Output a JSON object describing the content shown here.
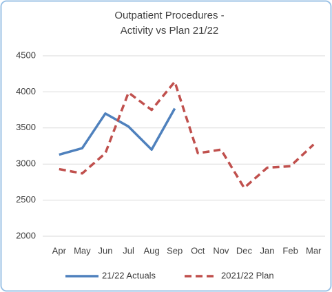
{
  "chart_data": {
    "type": "line",
    "title": [
      "Outpatient Procedures -",
      "Activity vs Plan 21/22"
    ],
    "categories": [
      "Apr",
      "May",
      "Jun",
      "Jul",
      "Aug",
      "Sep",
      "Oct",
      "Nov",
      "Dec",
      "Jan",
      "Feb",
      "Mar"
    ],
    "series": [
      {
        "name": "21/22 Actuals",
        "color": "#4f81bd",
        "dash": false,
        "values": [
          3130,
          3220,
          3700,
          3520,
          3200,
          3770,
          null,
          null,
          null,
          null,
          null,
          null
        ]
      },
      {
        "name": "2021/22 Plan",
        "color": "#c0504d",
        "dash": true,
        "values": [
          2930,
          2870,
          3150,
          3990,
          3750,
          4140,
          3150,
          3200,
          2670,
          2950,
          2970,
          3270
        ]
      }
    ],
    "ylim": [
      2000,
      4500
    ],
    "yticks": [
      2000,
      2500,
      3000,
      3500,
      4000,
      4500
    ],
    "grid": true,
    "legend": "bottom"
  }
}
